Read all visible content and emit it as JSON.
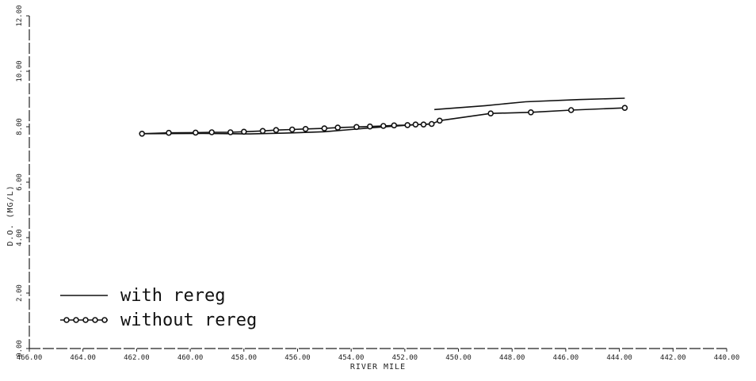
{
  "chart_data": {
    "type": "line",
    "title": "",
    "xlabel": "RIVER MILE",
    "ylabel": "D.O. (MG/L)",
    "xlim": [
      466,
      440
    ],
    "ylim": [
      0,
      12
    ],
    "x_ticks": [
      466,
      464,
      462,
      460,
      458,
      456,
      454,
      452,
      450,
      448,
      446,
      444,
      442,
      440
    ],
    "x_tick_labels": [
      "466.00",
      "464.00",
      "462.00",
      "460.00",
      "458.00",
      "456.00",
      "454.00",
      "452.00",
      "450.00",
      "448.00",
      "446.00",
      "444.00",
      "442.00",
      "440.00"
    ],
    "y_ticks": [
      0,
      2,
      4,
      6,
      8,
      10,
      12
    ],
    "y_tick_labels": [
      "0.00",
      "2.00",
      "4.00",
      "6.00",
      "8.00",
      "10.00",
      "12.00"
    ],
    "grid": false,
    "legend_position": "bottom-left",
    "series": [
      {
        "name": "with rereg",
        "marker": "none",
        "segments": [
          {
            "x": [
              461.8,
              459.5,
              457.8,
              456.5,
              455.0,
              454.0,
              453.0,
              452.0,
              451.1
            ],
            "y": [
              7.75,
              7.76,
              7.74,
              7.77,
              7.82,
              7.9,
              7.98,
              8.05,
              8.1
            ]
          },
          {
            "x": [
              450.9,
              449.0,
              447.5,
              445.5,
              443.8
            ],
            "y": [
              8.62,
              8.76,
              8.9,
              8.98,
              9.03
            ]
          }
        ]
      },
      {
        "name": "without rereg",
        "marker": "circle",
        "segments": [
          {
            "x": [
              461.8,
              460.8,
              459.8,
              459.2,
              458.5,
              458.0,
              457.3,
              456.8,
              456.2,
              455.7,
              455.0,
              454.5,
              453.8,
              453.3,
              452.8,
              452.4,
              451.9,
              451.6,
              451.3,
              451.0,
              450.7,
              448.8,
              447.3,
              445.8,
              443.8
            ],
            "y": [
              7.75,
              7.78,
              7.79,
              7.8,
              7.8,
              7.82,
              7.85,
              7.88,
              7.9,
              7.92,
              7.94,
              7.97,
              7.99,
              8.01,
              8.03,
              8.05,
              8.06,
              8.08,
              8.08,
              8.1,
              8.22,
              8.48,
              8.52,
              8.6,
              8.68
            ]
          }
        ]
      }
    ]
  }
}
